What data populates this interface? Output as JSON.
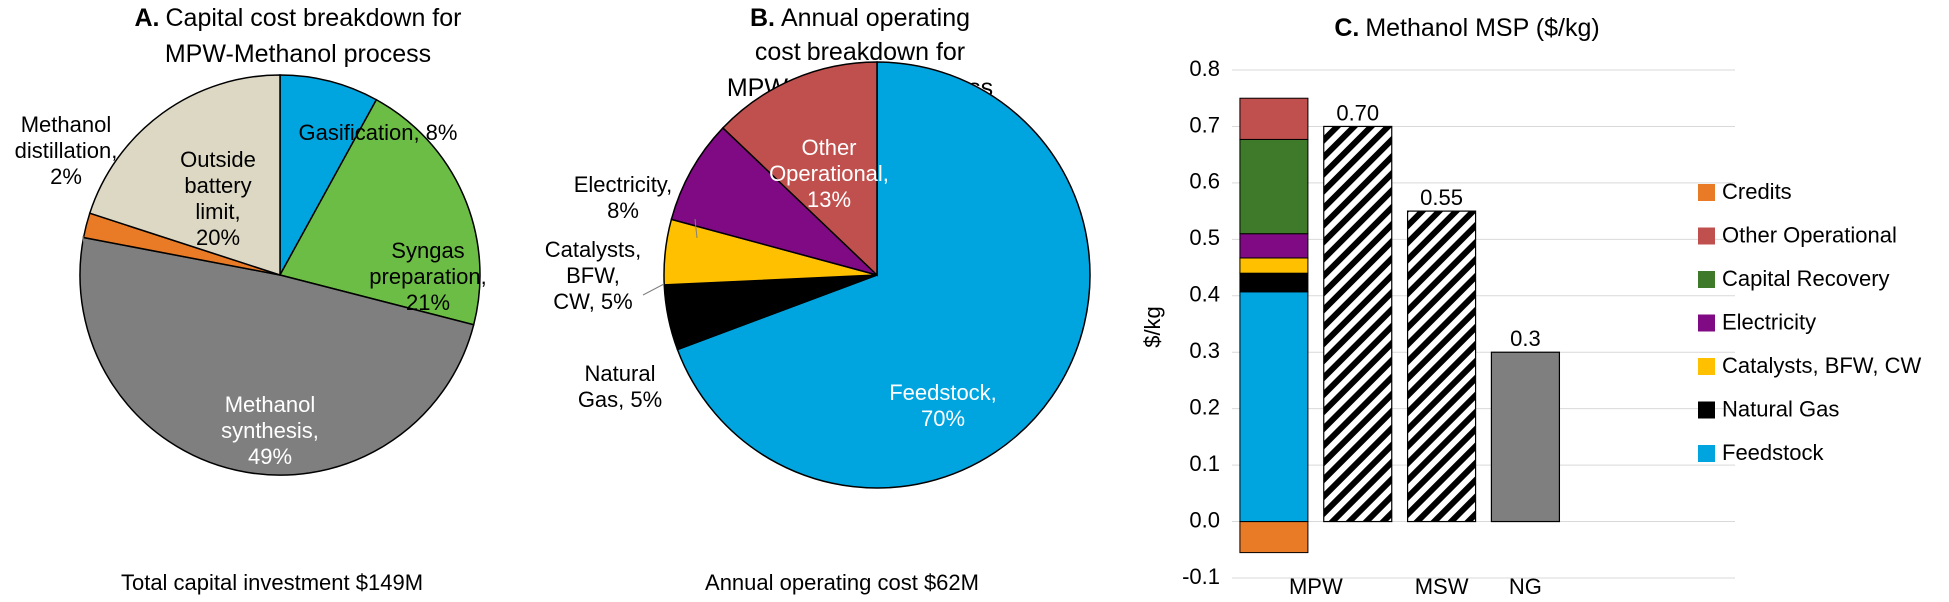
{
  "panel_a": {
    "letter": "A.",
    "title_1": "Capital cost breakdown for",
    "title_2": "MPW-Methanol process",
    "footer": "Total capital investment $149M"
  },
  "panel_b": {
    "letter": "B.",
    "title_1": "Annual operating",
    "title_2": "cost",
    "title_3": "breakdown for",
    "title_4": "MPW-Methanol process",
    "footer": "Annual operating cost $62M"
  },
  "panel_c": {
    "letter": "C.",
    "title": "Methanol MSP ($/kg)"
  },
  "chart_data": [
    {
      "type": "pie",
      "title": "Capital cost breakdown for MPW-Methanol process",
      "slices": [
        {
          "name": "Gasification",
          "value": 8,
          "color": "#00A5E0",
          "label_lines": [
            "Gasification, 8%"
          ]
        },
        {
          "name": "Syngas preparation",
          "value": 21,
          "color": "#6CBD45",
          "label_lines": [
            "Syngas",
            "preparation,",
            "21%"
          ]
        },
        {
          "name": "Methanol synthesis",
          "value": 49,
          "color": "#7F7F7F",
          "label_lines": [
            "Methanol",
            "synthesis,",
            "49%"
          ]
        },
        {
          "name": "Methanol distillation",
          "value": 2,
          "color": "#E97A26",
          "label_lines": [
            "Methanol",
            "distillation,",
            "2%"
          ]
        },
        {
          "name": "Outside battery limit",
          "value": 20,
          "color": "#DDD8C4",
          "label_lines": [
            "Outside",
            "battery",
            "limit,",
            "20%"
          ]
        }
      ]
    },
    {
      "type": "pie",
      "title": "Annual operating cost breakdown for MPW-Methanol process",
      "slices": [
        {
          "name": "Feedstock",
          "value": 70,
          "color": "#00A5E0",
          "label_lines": [
            "Feedstock,",
            "70%"
          ]
        },
        {
          "name": "Natural Gas",
          "value": 5,
          "color": "#000000",
          "label_lines": [
            "Natural",
            "Gas, 5%"
          ]
        },
        {
          "name": "Catalysts, BFW, CW",
          "value": 5,
          "color": "#FFC000",
          "label_lines": [
            "Catalysts,",
            "BFW,",
            "CW, 5%"
          ]
        },
        {
          "name": "Electricity",
          "value": 8,
          "color": "#800A84",
          "label_lines": [
            "Electricity,",
            "8%"
          ]
        },
        {
          "name": "Other Operational",
          "value": 13,
          "color": "#C0504D",
          "label_lines": [
            "Other",
            "Operational,",
            "13%"
          ]
        }
      ]
    },
    {
      "type": "bar",
      "title": "Methanol MSP ($/kg)",
      "categories": [
        "MPW",
        "MSW",
        "NG"
      ],
      "ylabel": "$/kg",
      "ylim": [
        -0.1,
        0.8
      ],
      "yticks": [
        "-0.1",
        "0.0",
        "0.1",
        "0.2",
        "0.3",
        "0.4",
        "0.5",
        "0.6",
        "0.7",
        "0.8"
      ],
      "stacked": {
        "category": "MPW",
        "segments": [
          {
            "name": "Credits",
            "value": -0.055,
            "color": "#E97A26"
          },
          {
            "name": "Feedstock",
            "value": 0.407,
            "color": "#00A5E0"
          },
          {
            "name": "Natural Gas",
            "value": 0.033,
            "color": "#000000"
          },
          {
            "name": "Catalysts, BFW, CW",
            "value": 0.027,
            "color": "#FFC000"
          },
          {
            "name": "Electricity",
            "value": 0.043,
            "color": "#800A84"
          },
          {
            "name": "Capital Recovery",
            "value": 0.167,
            "color": "#3F7A2A"
          },
          {
            "name": "Other Operational",
            "value": 0.073,
            "color": "#C0504D"
          }
        ]
      },
      "bars": [
        {
          "category": "MPW",
          "value": 0.7,
          "label": "0.70",
          "pattern": "hatched"
        },
        {
          "category": "MSW",
          "value": 0.55,
          "label": "0.55",
          "pattern": "hatched"
        },
        {
          "category": "NG",
          "value": 0.3,
          "label": "0.3",
          "color": "#7F7F7F"
        }
      ],
      "legend": [
        {
          "name": "Credits",
          "color": "#E97A26"
        },
        {
          "name": "Other Operational",
          "color": "#C0504D"
        },
        {
          "name": "Capital Recovery",
          "color": "#3F7A2A"
        },
        {
          "name": "Electricity",
          "color": "#800A84"
        },
        {
          "name": "Catalysts, BFW, CW",
          "color": "#FFC000"
        },
        {
          "name": "Natural Gas",
          "color": "#000000"
        },
        {
          "name": "Feedstock",
          "color": "#00A5E0"
        }
      ],
      "legend_position": "right",
      "grid": true
    }
  ]
}
